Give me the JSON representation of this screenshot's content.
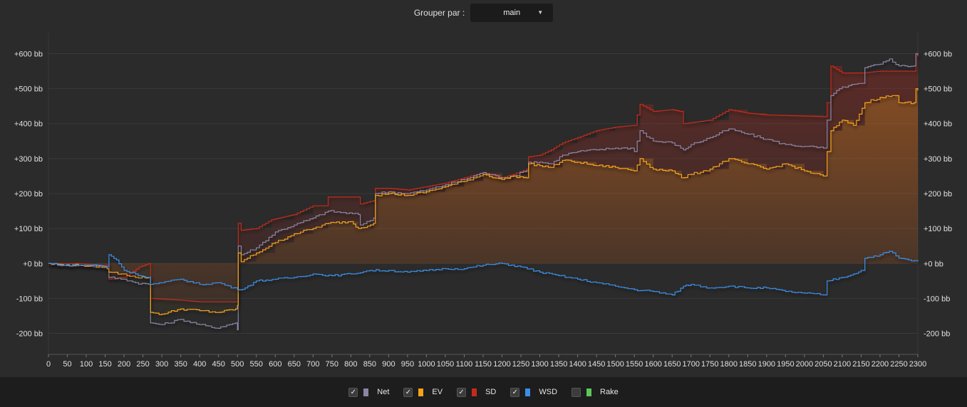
{
  "toolbar": {
    "group_label": "Grouper par :",
    "group_value": "main"
  },
  "chart_data": {
    "type": "line",
    "title": "",
    "xlabel": "",
    "ylabel": "",
    "xlim": [
      0,
      2300
    ],
    "ylim": [
      -260,
      660
    ],
    "grid": true,
    "y_axis_sides": "both",
    "yticks": [
      600,
      500,
      400,
      300,
      200,
      100,
      0,
      -100,
      -200
    ],
    "ytick_labels": [
      "+600 bb",
      "+500 bb",
      "+400 bb",
      "+300 bb",
      "+200 bb",
      "+100 bb",
      "+0 bb",
      "-100 bb",
      "-200 bb"
    ],
    "xticks": [
      0,
      50,
      100,
      150,
      200,
      250,
      300,
      350,
      400,
      450,
      500,
      550,
      600,
      650,
      700,
      750,
      800,
      850,
      900,
      950,
      1000,
      1050,
      1100,
      1150,
      1200,
      1250,
      1300,
      1350,
      1400,
      1450,
      1500,
      1550,
      1600,
      1650,
      1700,
      1750,
      1800,
      1850,
      1900,
      1950,
      2000,
      2050,
      2100,
      2150,
      2200,
      2250,
      2300
    ],
    "series": [
      {
        "name": "SD",
        "color": "#c42a1c",
        "visible": true,
        "points": [
          [
            0,
            0
          ],
          [
            40,
            0
          ],
          [
            80,
            0
          ],
          [
            130,
            -5
          ],
          [
            155,
            -5
          ],
          [
            160,
            -45
          ],
          [
            200,
            -40
          ],
          [
            240,
            -10
          ],
          [
            265,
            0
          ],
          [
            270,
            -100
          ],
          [
            350,
            -105
          ],
          [
            400,
            -110
          ],
          [
            500,
            -110
          ],
          [
            502,
            115
          ],
          [
            510,
            95
          ],
          [
            550,
            100
          ],
          [
            590,
            125
          ],
          [
            650,
            140
          ],
          [
            700,
            165
          ],
          [
            735,
            165
          ],
          [
            740,
            190
          ],
          [
            820,
            190
          ],
          [
            825,
            170
          ],
          [
            860,
            180
          ],
          [
            865,
            215
          ],
          [
            900,
            215
          ],
          [
            950,
            210
          ],
          [
            1000,
            220
          ],
          [
            1050,
            230
          ],
          [
            1100,
            245
          ],
          [
            1150,
            260
          ],
          [
            1200,
            245
          ],
          [
            1230,
            255
          ],
          [
            1265,
            270
          ],
          [
            1270,
            305
          ],
          [
            1300,
            310
          ],
          [
            1330,
            325
          ],
          [
            1360,
            345
          ],
          [
            1400,
            360
          ],
          [
            1450,
            380
          ],
          [
            1500,
            390
          ],
          [
            1550,
            395
          ],
          [
            1565,
            455
          ],
          [
            1600,
            435
          ],
          [
            1650,
            440
          ],
          [
            1670,
            435
          ],
          [
            1680,
            400
          ],
          [
            1750,
            410
          ],
          [
            1800,
            440
          ],
          [
            1850,
            430
          ],
          [
            1900,
            425
          ],
          [
            2050,
            420
          ],
          [
            2060,
            460
          ],
          [
            2070,
            565
          ],
          [
            2100,
            545
          ],
          [
            2150,
            545
          ],
          [
            2200,
            550
          ],
          [
            2290,
            550
          ],
          [
            2295,
            600
          ],
          [
            2300,
            590
          ]
        ]
      },
      {
        "name": "Net",
        "color": "#8a85a4",
        "visible": true,
        "points": [
          [
            0,
            0
          ],
          [
            40,
            -5
          ],
          [
            80,
            -5
          ],
          [
            150,
            -10
          ],
          [
            155,
            -15
          ],
          [
            160,
            -40
          ],
          [
            200,
            -45
          ],
          [
            230,
            -55
          ],
          [
            265,
            -60
          ],
          [
            270,
            -170
          ],
          [
            300,
            -175
          ],
          [
            350,
            -160
          ],
          [
            400,
            -175
          ],
          [
            440,
            -185
          ],
          [
            495,
            -170
          ],
          [
            500,
            -190
          ],
          [
            502,
            50
          ],
          [
            510,
            25
          ],
          [
            550,
            45
          ],
          [
            600,
            90
          ],
          [
            650,
            110
          ],
          [
            700,
            130
          ],
          [
            740,
            150
          ],
          [
            820,
            140
          ],
          [
            825,
            110
          ],
          [
            860,
            130
          ],
          [
            865,
            200
          ],
          [
            900,
            205
          ],
          [
            950,
            200
          ],
          [
            1000,
            210
          ],
          [
            1050,
            225
          ],
          [
            1100,
            240
          ],
          [
            1150,
            260
          ],
          [
            1200,
            245
          ],
          [
            1230,
            250
          ],
          [
            1265,
            265
          ],
          [
            1270,
            290
          ],
          [
            1300,
            290
          ],
          [
            1330,
            285
          ],
          [
            1360,
            310
          ],
          [
            1400,
            320
          ],
          [
            1450,
            325
          ],
          [
            1500,
            330
          ],
          [
            1540,
            330
          ],
          [
            1550,
            320
          ],
          [
            1565,
            380
          ],
          [
            1600,
            350
          ],
          [
            1650,
            345
          ],
          [
            1680,
            325
          ],
          [
            1700,
            340
          ],
          [
            1750,
            360
          ],
          [
            1800,
            385
          ],
          [
            1850,
            370
          ],
          [
            1900,
            355
          ],
          [
            1950,
            340
          ],
          [
            2000,
            335
          ],
          [
            2050,
            330
          ],
          [
            2060,
            410
          ],
          [
            2070,
            480
          ],
          [
            2100,
            505
          ],
          [
            2150,
            515
          ],
          [
            2160,
            560
          ],
          [
            2200,
            570
          ],
          [
            2225,
            585
          ],
          [
            2250,
            565
          ],
          [
            2290,
            565
          ],
          [
            2295,
            600
          ],
          [
            2300,
            595
          ]
        ]
      },
      {
        "name": "EV",
        "color": "#f3a21a",
        "visible": true,
        "points": [
          [
            0,
            0
          ],
          [
            40,
            -5
          ],
          [
            80,
            -5
          ],
          [
            150,
            -10
          ],
          [
            155,
            -15
          ],
          [
            160,
            -25
          ],
          [
            200,
            -30
          ],
          [
            230,
            -40
          ],
          [
            265,
            -40
          ],
          [
            270,
            -140
          ],
          [
            300,
            -145
          ],
          [
            350,
            -130
          ],
          [
            400,
            -135
          ],
          [
            450,
            -140
          ],
          [
            495,
            -130
          ],
          [
            500,
            -120
          ],
          [
            502,
            30
          ],
          [
            510,
            5
          ],
          [
            550,
            30
          ],
          [
            600,
            60
          ],
          [
            650,
            85
          ],
          [
            700,
            100
          ],
          [
            740,
            115
          ],
          [
            800,
            120
          ],
          [
            820,
            100
          ],
          [
            860,
            115
          ],
          [
            865,
            195
          ],
          [
            900,
            200
          ],
          [
            950,
            195
          ],
          [
            1000,
            205
          ],
          [
            1050,
            220
          ],
          [
            1100,
            235
          ],
          [
            1150,
            255
          ],
          [
            1200,
            240
          ],
          [
            1230,
            250
          ],
          [
            1265,
            245
          ],
          [
            1270,
            285
          ],
          [
            1300,
            280
          ],
          [
            1330,
            275
          ],
          [
            1360,
            295
          ],
          [
            1400,
            290
          ],
          [
            1450,
            280
          ],
          [
            1500,
            275
          ],
          [
            1550,
            265
          ],
          [
            1565,
            300
          ],
          [
            1600,
            270
          ],
          [
            1650,
            265
          ],
          [
            1675,
            245
          ],
          [
            1700,
            255
          ],
          [
            1750,
            270
          ],
          [
            1800,
            300
          ],
          [
            1850,
            285
          ],
          [
            1900,
            270
          ],
          [
            1950,
            285
          ],
          [
            2000,
            265
          ],
          [
            2050,
            250
          ],
          [
            2060,
            320
          ],
          [
            2070,
            380
          ],
          [
            2100,
            410
          ],
          [
            2130,
            395
          ],
          [
            2160,
            460
          ],
          [
            2200,
            475
          ],
          [
            2240,
            480
          ],
          [
            2250,
            460
          ],
          [
            2290,
            460
          ],
          [
            2295,
            500
          ],
          [
            2300,
            495
          ]
        ]
      },
      {
        "name": "WSD",
        "color": "#3b8ee8",
        "visible": true,
        "points": [
          [
            0,
            0
          ],
          [
            40,
            -5
          ],
          [
            80,
            -5
          ],
          [
            130,
            -5
          ],
          [
            155,
            -10
          ],
          [
            160,
            25
          ],
          [
            180,
            10
          ],
          [
            200,
            -20
          ],
          [
            230,
            -30
          ],
          [
            260,
            -40
          ],
          [
            270,
            -60
          ],
          [
            300,
            -55
          ],
          [
            350,
            -45
          ],
          [
            400,
            -60
          ],
          [
            450,
            -55
          ],
          [
            500,
            -75
          ],
          [
            520,
            -70
          ],
          [
            550,
            -50
          ],
          [
            600,
            -45
          ],
          [
            650,
            -40
          ],
          [
            700,
            -30
          ],
          [
            750,
            -35
          ],
          [
            800,
            -30
          ],
          [
            850,
            -20
          ],
          [
            900,
            -20
          ],
          [
            950,
            -25
          ],
          [
            1000,
            -20
          ],
          [
            1050,
            -15
          ],
          [
            1100,
            -15
          ],
          [
            1150,
            -5
          ],
          [
            1200,
            0
          ],
          [
            1250,
            -10
          ],
          [
            1300,
            -25
          ],
          [
            1350,
            -35
          ],
          [
            1400,
            -45
          ],
          [
            1450,
            -55
          ],
          [
            1500,
            -65
          ],
          [
            1550,
            -75
          ],
          [
            1600,
            -80
          ],
          [
            1650,
            -90
          ],
          [
            1680,
            -65
          ],
          [
            1700,
            -60
          ],
          [
            1750,
            -70
          ],
          [
            1800,
            -65
          ],
          [
            1850,
            -70
          ],
          [
            1900,
            -70
          ],
          [
            1950,
            -80
          ],
          [
            2000,
            -85
          ],
          [
            2050,
            -90
          ],
          [
            2060,
            -50
          ],
          [
            2100,
            -40
          ],
          [
            2130,
            -30
          ],
          [
            2150,
            -20
          ],
          [
            2160,
            15
          ],
          [
            2200,
            25
          ],
          [
            2225,
            35
          ],
          [
            2250,
            15
          ],
          [
            2300,
            5
          ]
        ]
      },
      {
        "name": "Rake",
        "color": "#5cc65a",
        "visible": false,
        "points": []
      }
    ]
  },
  "legend": [
    {
      "key": "net",
      "label": "Net",
      "checked": true,
      "check_glyph": "✓",
      "color": "#8a85a4"
    },
    {
      "key": "ev",
      "label": "EV",
      "checked": true,
      "check_glyph": "✓",
      "color": "#f3a21a"
    },
    {
      "key": "sd",
      "label": "SD",
      "checked": true,
      "check_glyph": "✓",
      "color": "#c42a1c"
    },
    {
      "key": "wsd",
      "label": "WSD",
      "checked": true,
      "check_glyph": "✓",
      "color": "#3b8ee8"
    },
    {
      "key": "rake",
      "label": "Rake",
      "checked": false,
      "check_glyph": "",
      "color": "#5cc65a"
    }
  ]
}
